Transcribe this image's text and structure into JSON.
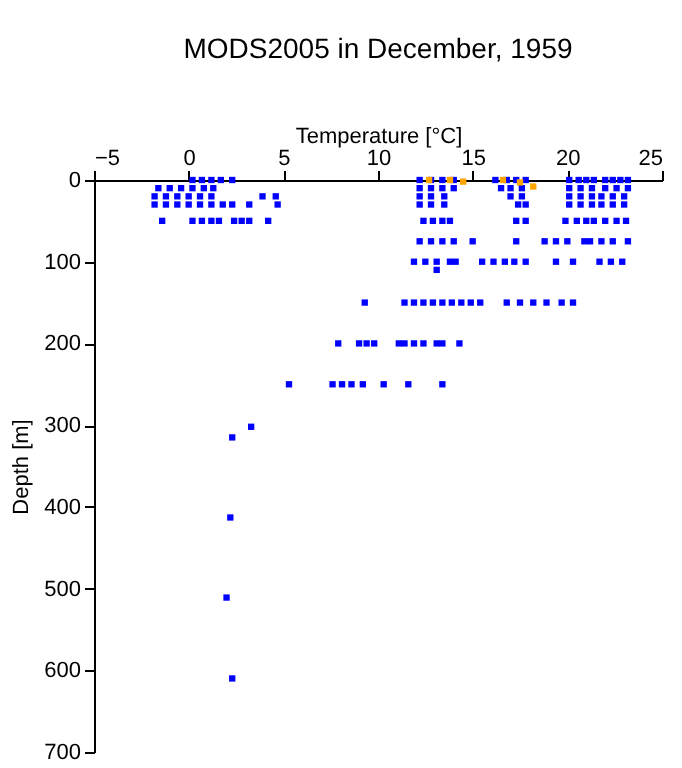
{
  "chart_data": {
    "type": "scatter",
    "title": "MODS2005 in December, 1959",
    "xlabel": "Temperature [°C]",
    "ylabel": "Depth [m]",
    "xlim": [
      -5,
      25
    ],
    "xticks": [
      -5,
      0,
      5,
      10,
      15,
      20,
      25
    ],
    "ylim": [
      700,
      0
    ],
    "yticks": [
      0,
      100,
      200,
      300,
      400,
      500,
      600,
      700
    ],
    "grid": false,
    "legend": false,
    "marker": "square",
    "series": [
      {
        "color": "#0000ff",
        "x": [
          0.2,
          0.7,
          1.2,
          1.7,
          2.3,
          12.2,
          12.8,
          13.4,
          14.0,
          16.2,
          16.8,
          17.3,
          17.8,
          20.1,
          20.6,
          21.0,
          21.4,
          22.0,
          22.4,
          22.8,
          23.2,
          -1.6,
          -1.0,
          -0.4,
          0.2,
          0.8,
          1.3,
          12.2,
          12.8,
          13.4,
          14.0,
          16.5,
          17.0,
          17.6,
          20.1,
          20.7,
          21.3,
          22.0,
          22.6,
          23.2,
          -1.8,
          -1.2,
          -0.6,
          0.0,
          0.6,
          1.2,
          3.9,
          4.6,
          12.2,
          12.8,
          13.5,
          17.0,
          17.6,
          20.1,
          20.7,
          21.3,
          21.8,
          22.4,
          23.0,
          -1.8,
          -1.2,
          -0.6,
          0.0,
          0.6,
          1.2,
          1.8,
          2.3,
          3.2,
          4.7,
          12.2,
          12.8,
          13.5,
          17.4,
          17.8,
          20.1,
          20.7,
          21.3,
          21.8,
          22.4,
          23.0,
          -1.4,
          0.2,
          0.7,
          1.2,
          1.6,
          2.4,
          2.8,
          3.2,
          4.2,
          12.4,
          12.9,
          13.4,
          13.8,
          17.3,
          17.8,
          19.9,
          20.5,
          21.0,
          21.4,
          22.0,
          22.6,
          23.1,
          12.2,
          12.8,
          13.4,
          14.0,
          15.0,
          17.3,
          18.8,
          19.4,
          20.0,
          20.9,
          21.2,
          21.8,
          22.4,
          23.2,
          11.9,
          12.5,
          13.1,
          13.8,
          14.1,
          15.5,
          16.1,
          16.7,
          17.2,
          17.8,
          19.4,
          20.3,
          21.7,
          22.3,
          22.9,
          13.1,
          9.3,
          11.4,
          11.9,
          12.4,
          12.9,
          13.4,
          13.9,
          14.4,
          14.9,
          15.4,
          16.8,
          17.5,
          18.2,
          18.9,
          19.7,
          20.3,
          7.9,
          9.0,
          9.4,
          9.8,
          11.1,
          11.4,
          11.9,
          12.4,
          13.1,
          13.4,
          14.3,
          5.3,
          7.6,
          8.1,
          8.6,
          9.2,
          10.3,
          11.6,
          13.4,
          3.3,
          2.3,
          2.2,
          2.0,
          2.3
        ],
        "values": [
          0,
          0,
          0,
          0,
          0,
          0,
          0,
          0,
          0,
          0,
          0,
          0,
          0,
          0,
          0,
          0,
          0,
          0,
          0,
          0,
          0,
          10,
          10,
          10,
          10,
          10,
          10,
          10,
          10,
          10,
          10,
          10,
          10,
          10,
          10,
          10,
          10,
          10,
          10,
          10,
          20,
          20,
          20,
          20,
          20,
          20,
          20,
          20,
          20,
          20,
          20,
          20,
          20,
          20,
          20,
          20,
          20,
          20,
          20,
          30,
          30,
          30,
          30,
          30,
          30,
          30,
          30,
          30,
          30,
          30,
          30,
          30,
          30,
          30,
          30,
          30,
          30,
          30,
          30,
          30,
          50,
          50,
          50,
          50,
          50,
          50,
          50,
          50,
          50,
          50,
          50,
          50,
          50,
          50,
          50,
          50,
          50,
          50,
          50,
          50,
          50,
          50,
          75,
          75,
          75,
          75,
          75,
          75,
          75,
          75,
          75,
          75,
          75,
          75,
          75,
          75,
          100,
          100,
          100,
          100,
          100,
          100,
          100,
          100,
          100,
          100,
          100,
          100,
          100,
          100,
          100,
          110,
          150,
          150,
          150,
          150,
          150,
          150,
          150,
          150,
          150,
          150,
          150,
          150,
          150,
          150,
          150,
          150,
          200,
          200,
          200,
          200,
          200,
          200,
          200,
          200,
          200,
          200,
          200,
          250,
          250,
          250,
          250,
          250,
          250,
          250,
          250,
          302,
          315,
          413,
          511,
          610
        ]
      },
      {
        "color": "#ffa500",
        "x": [
          12.7,
          13.8,
          14.5,
          16.6,
          17.5,
          18.2
        ],
        "values": [
          0,
          0,
          2,
          0,
          3,
          8
        ]
      }
    ]
  }
}
